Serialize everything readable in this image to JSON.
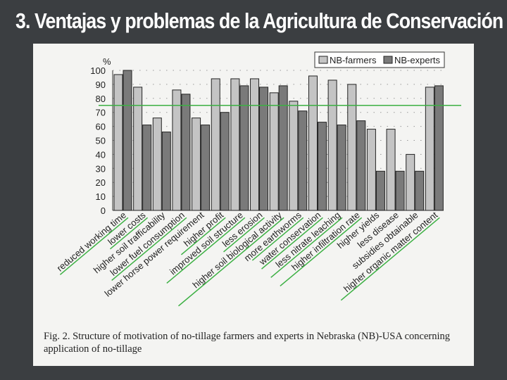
{
  "slide": {
    "title": "3. Ventajas y problemas de la Agricultura de Conservación"
  },
  "caption": "Fig. 2. Structure of motivation of no-tillage farmers and experts in Nebraska (NB)-USA concerning application of no-tillage",
  "chart_data": {
    "type": "bar",
    "ylabel": "%",
    "ylim": [
      0,
      100
    ],
    "yticks": [
      0,
      10,
      20,
      30,
      40,
      50,
      60,
      70,
      80,
      90,
      100
    ],
    "grid": "dotted horizontal",
    "legend": "top-right",
    "reference_line": {
      "value": 75,
      "color": "#3cb043"
    },
    "categories": [
      "reduced working time",
      "lower costs",
      "higher soil trafficability",
      "lower fuel consumption",
      "lower horse power requirement",
      "higher profit",
      "improved soil structure",
      "less erosion",
      "higher soil biological activity",
      "more earthworms",
      "water conservation",
      "less nitrate leaching",
      "higher infiltration rate",
      "higher yields",
      "less disease",
      "subsidies obtainable",
      "higher organic matter content"
    ],
    "underlined": [
      true,
      true,
      false,
      true,
      false,
      true,
      true,
      true,
      true,
      true,
      true,
      true,
      true,
      false,
      false,
      false,
      true
    ],
    "underline_color": "#3cb043",
    "series": [
      {
        "name": "NB-farmers",
        "color": "#c4c4c4",
        "values": [
          97,
          88,
          66,
          86,
          66,
          94,
          94,
          94,
          84,
          78,
          96,
          93,
          90,
          58,
          58,
          40,
          88
        ]
      },
      {
        "name": "NB-experts",
        "color": "#7a7a7a",
        "values": [
          100,
          61,
          56,
          83,
          61,
          70,
          89,
          88,
          89,
          71,
          63,
          61,
          64,
          28,
          28,
          28,
          89
        ]
      }
    ]
  }
}
